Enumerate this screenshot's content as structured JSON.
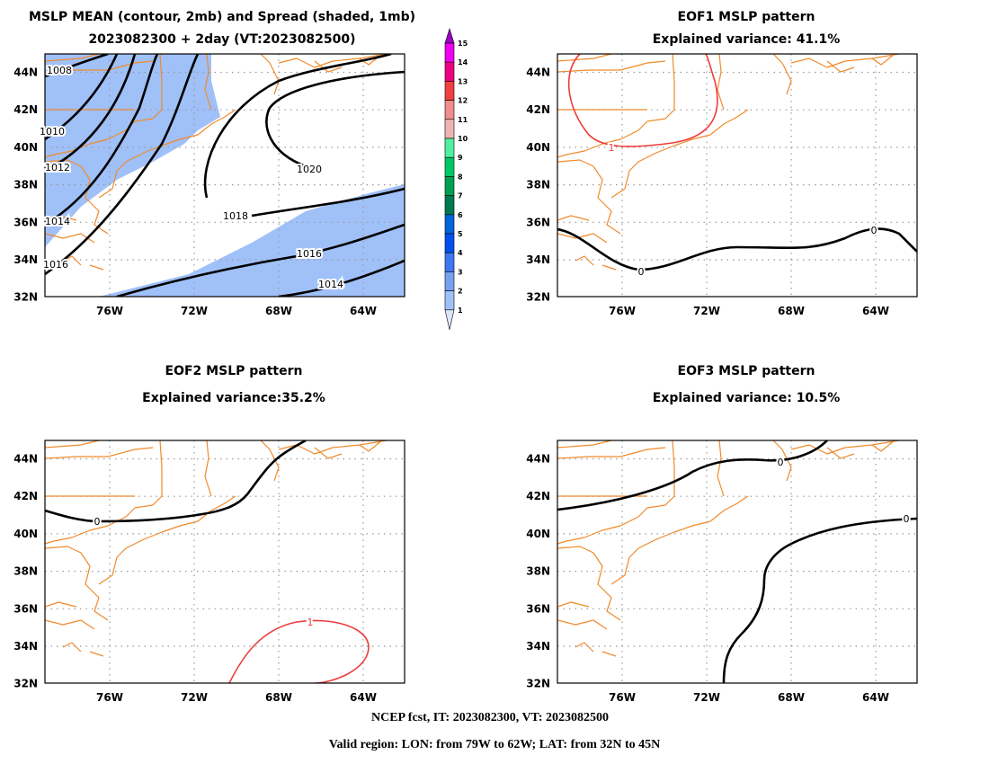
{
  "panels": {
    "mean": {
      "title_line1": "MSLP MEAN (contour, 2mb) and Spread (shaded, 1mb)",
      "title_line2": "2023082300 + 2day (VT:2023082500)",
      "contour_labels": [
        "1008",
        "1010",
        "1012",
        "1014",
        "1016",
        "1018",
        "1020",
        "1016",
        "1014"
      ]
    },
    "eof1": {
      "title_line1": "EOF1 MSLP pattern",
      "title_line2": "Explained variance: 41.1%",
      "contour_labels": [
        "1",
        "0",
        "0"
      ]
    },
    "eof2": {
      "title_line1": "EOF2 MSLP pattern",
      "title_line2": "Explained variance:35.2%",
      "contour_labels": [
        "0",
        "1"
      ]
    },
    "eof3": {
      "title_line1": "EOF3 MSLP pattern",
      "title_line2": "Explained variance: 10.5%",
      "contour_labels": [
        "0",
        "0"
      ]
    }
  },
  "axes": {
    "lat_labels": [
      "44N",
      "42N",
      "40N",
      "38N",
      "36N",
      "34N",
      "32N"
    ],
    "lon_labels": [
      "76W",
      "72W",
      "68W",
      "64W"
    ]
  },
  "colorbar": {
    "labels": [
      "15",
      "14",
      "13",
      "12",
      "11",
      "10",
      "9",
      "8",
      "7",
      "6",
      "5",
      "4",
      "3",
      "2",
      "1"
    ],
    "colors": [
      "#a000c8",
      "#f000f0",
      "#f00082",
      "#f04040",
      "#f08c8c",
      "#f0b4b4",
      "#50f0a0",
      "#00c864",
      "#00a050",
      "#007850",
      "#0064dc",
      "#0050f0",
      "#3c78f0",
      "#78a0f0",
      "#a0c0f8",
      "#dce6fa"
    ]
  },
  "footer": {
    "line1": "NCEP fcst, IT: 2023082300, VT: 2023082500",
    "line2": "Valid region: LON: from 79W to 62W; LAT: from 32N to 45N"
  }
}
